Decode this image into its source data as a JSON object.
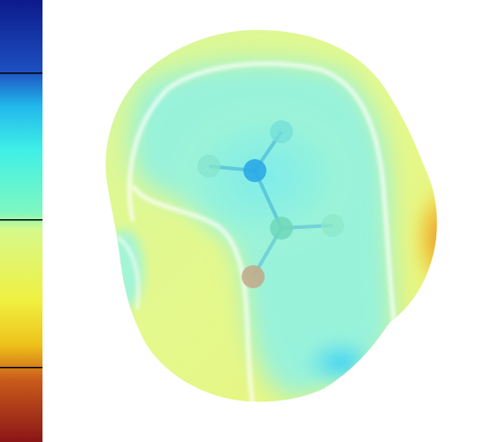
{
  "colorbar": {
    "stops": [
      "#0c1a8c",
      "#1d4fc0",
      "#22b8ec",
      "#3ff0e6",
      "#7ef7c0",
      "#d6f98a",
      "#f0f040",
      "#eec21a",
      "#c95a1a",
      "#8a1616"
    ],
    "divider_color": "#000000",
    "divider_count": 3
  },
  "surface": {
    "colors": {
      "neutral": "#e2f78e",
      "positive": "#8ff2e2",
      "strong_positive": "#3fd9f2",
      "negative": "#eca62a",
      "contour": "#ffffff"
    }
  },
  "molecule": {
    "atoms": [
      {
        "element": "central",
        "color": "#27a6e8"
      },
      {
        "element": "hydrogen",
        "color": "#73ddd8"
      },
      {
        "element": "hydrogen",
        "color": "#86e4cc"
      },
      {
        "element": "carbon",
        "color": "#6fd6b8"
      },
      {
        "element": "hydrogen",
        "color": "#8ce8c8"
      },
      {
        "element": "oxygen",
        "color": "#c3a98a"
      }
    ],
    "bond_color": "#39a6d6"
  }
}
